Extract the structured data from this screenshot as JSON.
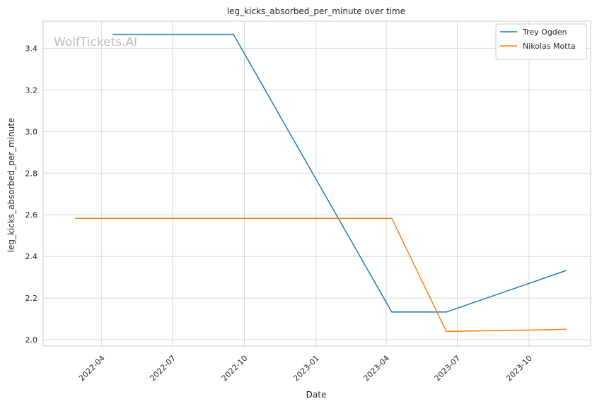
{
  "chart_data": {
    "type": "line",
    "title": "leg_kicks_absorbed_per_minute over time",
    "xlabel": "Date",
    "ylabel": "leg_kicks_absorbed_per_minute",
    "watermark": "WolfTickets.AI",
    "xlim": [
      "2022-01-16",
      "2023-12-19"
    ],
    "ylim": [
      1.97,
      3.53
    ],
    "x_ticks": [
      "2022-04-01",
      "2022-07-01",
      "2022-10-01",
      "2023-01-01",
      "2023-04-01",
      "2023-07-01",
      "2023-10-01"
    ],
    "x_tick_labels": [
      "2022-04",
      "2022-07",
      "2022-10",
      "2023-01",
      "2023-04",
      "2023-07",
      "2023-10"
    ],
    "y_ticks": [
      2.0,
      2.2,
      2.4,
      2.6,
      2.8,
      3.0,
      3.2,
      3.4
    ],
    "y_tick_labels": [
      "2.0",
      "2.2",
      "2.4",
      "2.6",
      "2.8",
      "3.0",
      "3.2",
      "3.4"
    ],
    "grid": true,
    "legend_position": "top-right",
    "series": [
      {
        "name": "Trey Ogden",
        "color": "#1f77b4",
        "x": [
          "2022-04-15",
          "2022-09-17",
          "2023-04-08",
          "2023-06-17",
          "2023-11-18"
        ],
        "y": [
          3.467,
          3.467,
          2.133,
          2.133,
          2.333
        ]
      },
      {
        "name": "Nikolas Motta",
        "color": "#ff7f0e",
        "x": [
          "2022-02-26",
          "2023-04-08",
          "2023-06-17",
          "2023-11-18"
        ],
        "y": [
          2.583,
          2.583,
          2.04,
          2.05
        ]
      }
    ]
  }
}
